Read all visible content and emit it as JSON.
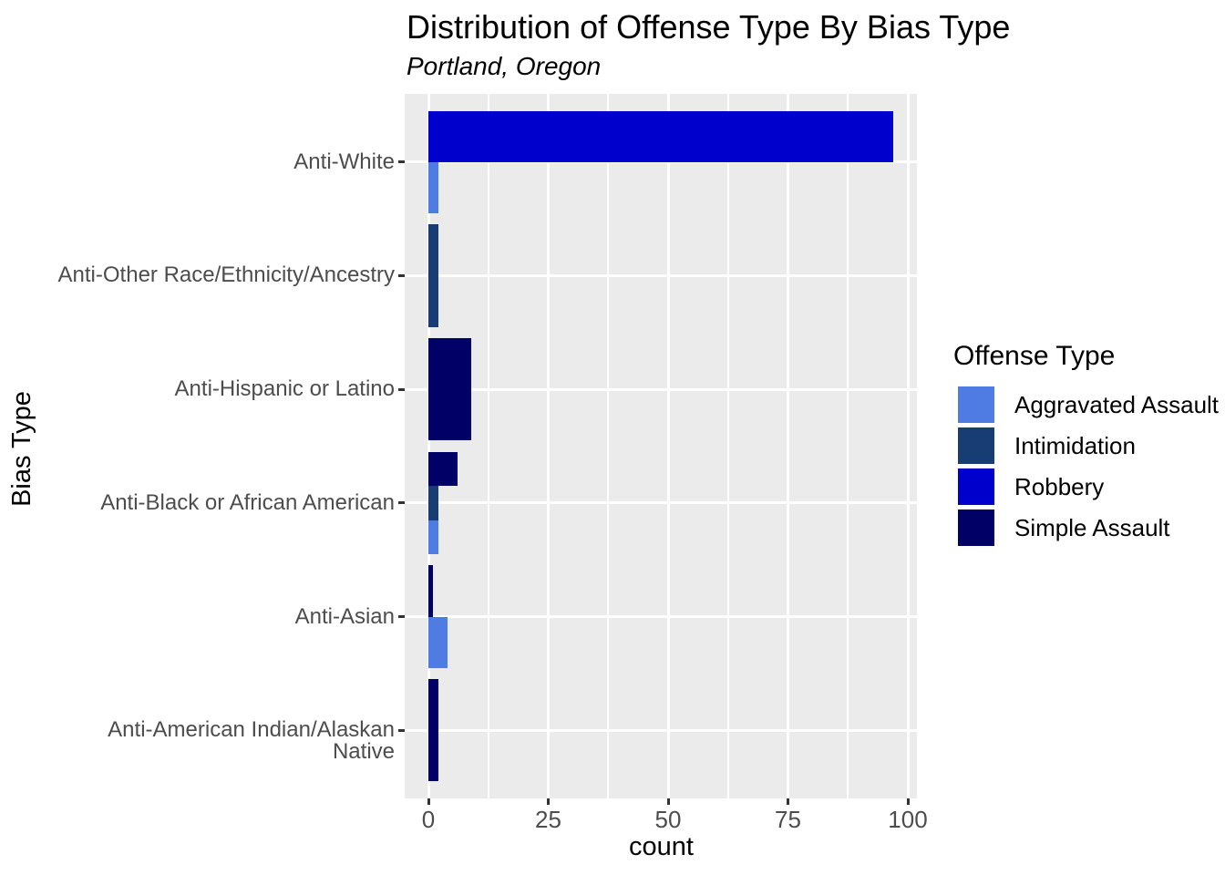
{
  "title": "Distribution of Offense Type By Bias Type",
  "subtitle": "Portland, Oregon",
  "axes": {
    "x_title": "count",
    "y_title": "Bias Type",
    "x_tick_labels": [
      "0",
      "25",
      "50",
      "75",
      "100"
    ]
  },
  "legend": {
    "title": "Offense Type",
    "entries": [
      {
        "label": "Aggravated Assault",
        "color": "#4F7CE3"
      },
      {
        "label": "Intimidation",
        "color": "#183D75"
      },
      {
        "label": "Robbery",
        "color": "#0000CD"
      },
      {
        "label": "Simple Assault",
        "color": "#000066"
      }
    ]
  },
  "chart_data": {
    "type": "bar",
    "orientation": "horizontal",
    "title": "Distribution of Offense Type By Bias Type",
    "subtitle": "Portland, Oregon",
    "xlabel": "count",
    "ylabel": "Bias Type",
    "xlim": [
      0,
      100
    ],
    "x_major_ticks": [
      0,
      25,
      50,
      75,
      100
    ],
    "x_minor_gridlines": [
      12.5,
      37.5,
      62.5,
      87.5
    ],
    "grid": true,
    "legend_position": "right",
    "panel_background": "#EBEBEB",
    "grid_color": "#FFFFFF",
    "series_order": [
      "Aggravated Assault",
      "Intimidation",
      "Robbery",
      "Simple Assault"
    ],
    "colors": {
      "Aggravated Assault": "#4F7CE3",
      "Intimidation": "#183D75",
      "Robbery": "#0000CD",
      "Simple Assault": "#000066"
    },
    "categories": [
      "Anti-White",
      "Anti-Other Race/Ethnicity/Ancestry",
      "Anti-Hispanic or Latino",
      "Anti-Black or African American",
      "Anti-Asian",
      "Anti-American Indian/Alaskan Native"
    ],
    "groups": [
      {
        "category": "Anti-White",
        "bars": [
          {
            "offense": "Aggravated Assault",
            "count": 2
          },
          {
            "offense": "Robbery",
            "count": 97
          }
        ]
      },
      {
        "category": "Anti-Other Race/Ethnicity/Ancestry",
        "bars": [
          {
            "offense": "Intimidation",
            "count": 2
          }
        ]
      },
      {
        "category": "Anti-Hispanic or Latino",
        "bars": [
          {
            "offense": "Simple Assault",
            "count": 9
          }
        ]
      },
      {
        "category": "Anti-Black or African American",
        "bars": [
          {
            "offense": "Aggravated Assault",
            "count": 2
          },
          {
            "offense": "Intimidation",
            "count": 2
          },
          {
            "offense": "Simple Assault",
            "count": 6
          }
        ]
      },
      {
        "category": "Anti-Asian",
        "bars": [
          {
            "offense": "Aggravated Assault",
            "count": 4
          },
          {
            "offense": "Simple Assault",
            "count": 1
          }
        ]
      },
      {
        "category": "Anti-American Indian/Alaskan Native",
        "bars": [
          {
            "offense": "Simple Assault",
            "count": 2
          }
        ]
      }
    ]
  }
}
